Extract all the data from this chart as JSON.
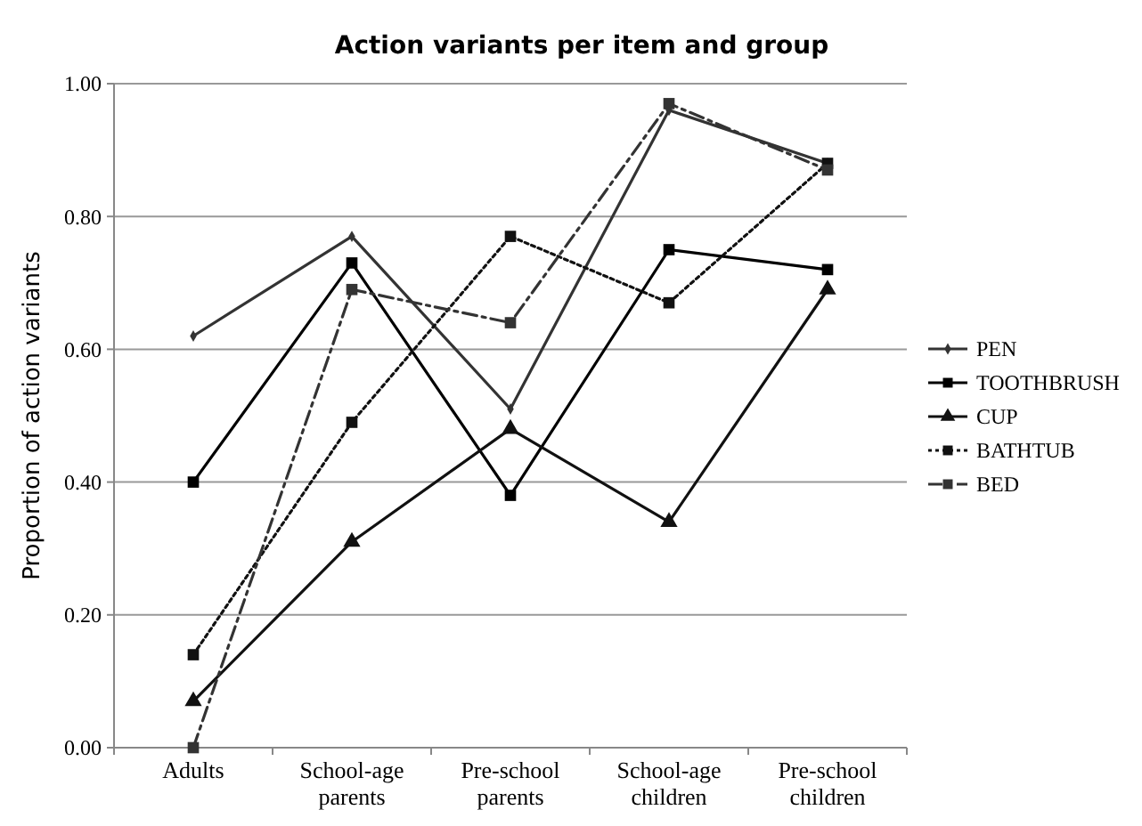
{
  "chart_data": {
    "type": "line",
    "title": "Action variants per item and group",
    "ylabel": "Proportion of action variants",
    "categories": [
      "Adults",
      "School-age parents",
      "Pre-school parents",
      "School-age children",
      "Pre-school children"
    ],
    "ylim": [
      0,
      1
    ],
    "yticks": [
      {
        "value": 0,
        "label": "0.00"
      },
      {
        "value": 0.2,
        "label": "0.20"
      },
      {
        "value": 0.4,
        "label": "0.40"
      },
      {
        "value": 0.6,
        "label": "0.60"
      },
      {
        "value": 0.8,
        "label": "0.80"
      },
      {
        "value": 1,
        "label": "1.00"
      }
    ],
    "grid": "y",
    "legend": "right",
    "series": [
      {
        "name": "PEN",
        "color": "#333333",
        "marker": "diamond",
        "line_style": "solid",
        "values": [
          0.62,
          0.77,
          0.51,
          0.96,
          0.88
        ]
      },
      {
        "name": "TOOTHBRUSH",
        "color": "#000000",
        "marker": "square",
        "line_style": "solid",
        "values": [
          0.4,
          0.73,
          0.38,
          0.75,
          0.72
        ]
      },
      {
        "name": "CUP",
        "color": "#111111",
        "marker": "triangle",
        "line_style": "solid",
        "values": [
          0.07,
          0.31,
          0.48,
          0.34,
          0.69
        ]
      },
      {
        "name": "BATHTUB",
        "color": "#111111",
        "marker": "square",
        "line_style": "dotted",
        "values": [
          0.14,
          0.49,
          0.77,
          0.67,
          0.88
        ]
      },
      {
        "name": "BED",
        "color": "#333333",
        "marker": "square",
        "line_style": "dashed",
        "values": [
          0.0,
          0.69,
          0.64,
          0.97,
          0.87
        ]
      }
    ]
  }
}
